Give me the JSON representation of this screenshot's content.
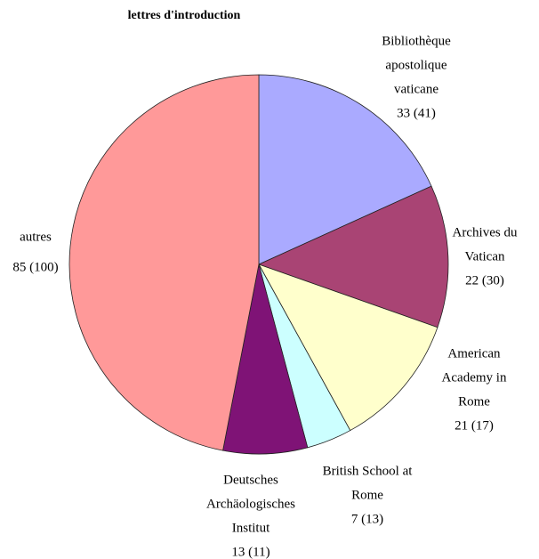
{
  "chart_data": {
    "type": "pie",
    "title": "lettres d'introduction",
    "categories": [
      [
        "Bibliothèque",
        "apostolique",
        "vaticane"
      ],
      [
        "Archives du",
        "Vatican"
      ],
      [
        "American",
        "Academy in",
        "Rome"
      ],
      [
        "British School at",
        "Rome"
      ],
      [
        "Deutsches",
        "Archäologisches",
        "Institut"
      ],
      [
        "autres"
      ]
    ],
    "values": [
      33,
      22,
      21,
      7,
      13,
      85
    ],
    "value_labels": [
      "33 (41)",
      "22 (30)",
      "21 (17)",
      "7 (13)",
      "13 (11)",
      "85 (100)"
    ],
    "colors": [
      "#aaaaff",
      "#a94474",
      "#ffffcc",
      "#ccffff",
      "#7f1376",
      "#ff9999"
    ]
  }
}
